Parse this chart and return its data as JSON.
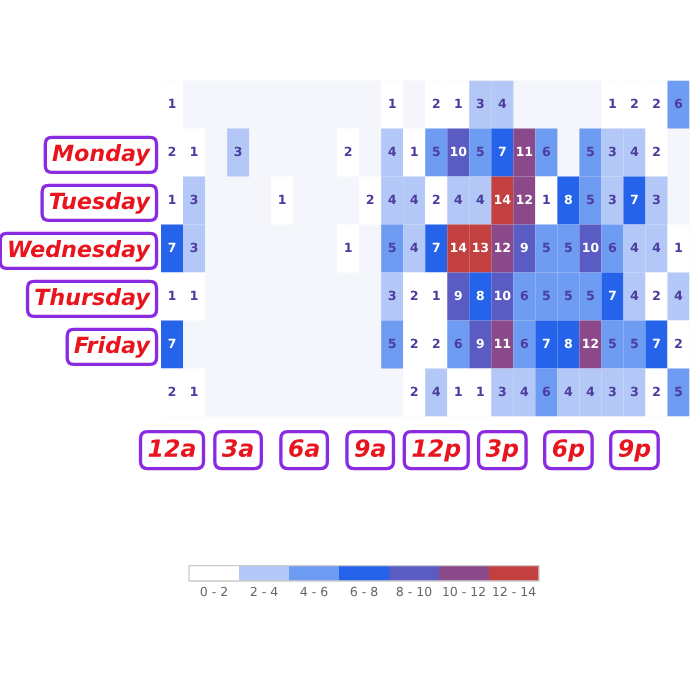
{
  "chart_data": {
    "type": "heatmap",
    "categories": [
      "12a",
      null,
      null,
      "3a",
      null,
      null,
      "6a",
      null,
      null,
      "9a",
      null,
      null,
      "12p",
      null,
      null,
      "3p",
      null,
      null,
      "6p",
      null,
      null,
      "9p",
      null,
      null
    ],
    "y_categories": [
      null,
      "Monday",
      "Tuesday",
      "Wednesday",
      "Thursday",
      "Friday",
      null
    ],
    "cells": [
      [
        1,
        null,
        null,
        null,
        null,
        null,
        null,
        null,
        null,
        null,
        1,
        null,
        2,
        1,
        3,
        4,
        null,
        null,
        null,
        null,
        1,
        2,
        2,
        6
      ],
      [
        2,
        1,
        null,
        3,
        null,
        null,
        null,
        null,
        2,
        null,
        4,
        1,
        5,
        10,
        5,
        7,
        11,
        6,
        null,
        5,
        3,
        4,
        2,
        null
      ],
      [
        1,
        3,
        null,
        null,
        null,
        1,
        null,
        null,
        null,
        2,
        4,
        4,
        2,
        4,
        4,
        14,
        12,
        1,
        8,
        5,
        3,
        7,
        3,
        null
      ],
      [
        7,
        3,
        null,
        null,
        null,
        null,
        null,
        null,
        1,
        null,
        5,
        4,
        7,
        14,
        13,
        12,
        9,
        5,
        5,
        10,
        6,
        4,
        4,
        1
      ],
      [
        1,
        1,
        null,
        null,
        null,
        null,
        null,
        null,
        null,
        null,
        3,
        2,
        1,
        9,
        8,
        10,
        6,
        5,
        5,
        5,
        7,
        4,
        2,
        4
      ],
      [
        7,
        null,
        null,
        null,
        null,
        null,
        null,
        null,
        null,
        null,
        5,
        2,
        2,
        6,
        9,
        11,
        6,
        7,
        8,
        12,
        5,
        5,
        7,
        2
      ],
      [
        2,
        1,
        null,
        null,
        null,
        null,
        null,
        null,
        null,
        null,
        null,
        2,
        4,
        1,
        1,
        3,
        4,
        6,
        4,
        4,
        3,
        3,
        2,
        5
      ]
    ],
    "clim": [
      0,
      14
    ],
    "cticks": [
      {
        "value": 1,
        "label": "0 - 2"
      },
      {
        "value": 3,
        "label": "2 - 4"
      },
      {
        "value": 5,
        "label": "4 - 6"
      },
      {
        "value": 7,
        "label": "6 - 8"
      },
      {
        "value": 9,
        "label": "8 - 10"
      },
      {
        "value": 11,
        "label": "10 - 12"
      },
      {
        "value": 13,
        "label": "12 - 14"
      }
    ],
    "colors": [
      "#ffffff",
      "#b3c8f6",
      "#6e9cf2",
      "#2563eb",
      "#5a5cc4",
      "#8a4a8a",
      "#c2403f"
    ],
    "data_labels": true
  }
}
